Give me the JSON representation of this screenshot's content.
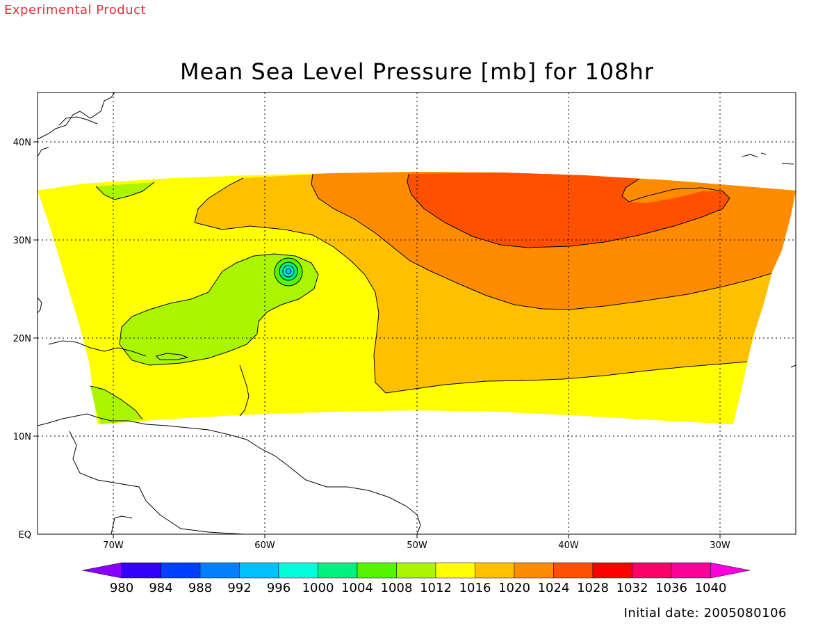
{
  "header": {
    "product_label": "Experimental Product",
    "title": "Mean Sea Level Pressure [mb] for 108hr"
  },
  "map": {
    "lon_ticks": [
      "70W",
      "60W",
      "50W",
      "40W",
      "30W"
    ],
    "lat_ticks": [
      "40N",
      "30N",
      "20N",
      "10N",
      "EQ"
    ],
    "grid": "dotted",
    "fill_colors": {
      "1004": "#55f500",
      "1008": "#aaf500",
      "1012": "#ffff00",
      "1016": "#ffc000",
      "1020": "#ff8c00",
      "1024": "#ff5000"
    }
  },
  "colorbar": {
    "levels": [
      "980",
      "984",
      "988",
      "992",
      "996",
      "1000",
      "1004",
      "1008",
      "1012",
      "1016",
      "1020",
      "1024",
      "1028",
      "1032",
      "1036",
      "1040"
    ],
    "colors": [
      "#8a00ff",
      "#3300ff",
      "#0040ff",
      "#0080ff",
      "#00c0ff",
      "#00ffd8",
      "#00f080",
      "#55f500",
      "#aaf500",
      "#ffff00",
      "#ffc000",
      "#ff8c00",
      "#ff5000",
      "#ff0000",
      "#ff0066",
      "#ff0099",
      "#ff00dd"
    ]
  },
  "footer": {
    "initial_date_label": "Initial date: 2005080106"
  }
}
